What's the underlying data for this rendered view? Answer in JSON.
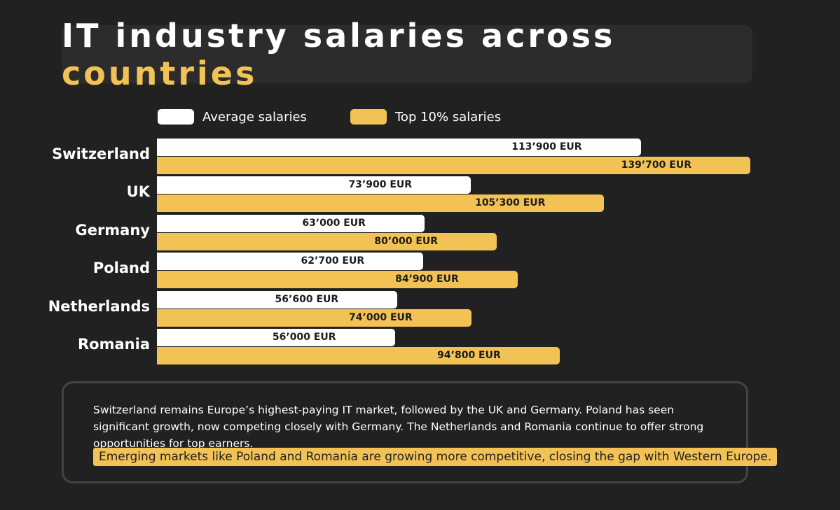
{
  "title": {
    "main": "IT industry salaries across",
    "highlight": "countries"
  },
  "colors": {
    "average": "#ffffff",
    "top10": "#f3c255",
    "background": "#212121"
  },
  "chart_data": {
    "type": "bar",
    "orientation": "horizontal",
    "categories": [
      "Switzerland",
      "UK",
      "Germany",
      "Poland",
      "Netherlands",
      "Romania"
    ],
    "series": [
      {
        "name": "Average salaries",
        "values": [
          113900,
          73900,
          63000,
          62700,
          56600,
          56000
        ],
        "labels": [
          "113’900 EUR",
          "73’900 EUR",
          "63’000 EUR",
          "62’700 EUR",
          "56’600 EUR",
          "56’000 EUR"
        ]
      },
      {
        "name": "Top 10% salaries",
        "values": [
          139700,
          105300,
          80000,
          84900,
          74000,
          94800
        ],
        "labels": [
          "139’700 EUR",
          "105’300 EUR",
          "80’000 EUR",
          "84’900 EUR",
          "74’000 EUR",
          "94’800 EUR"
        ]
      }
    ],
    "unit": "EUR",
    "legend": "top",
    "grid": false
  },
  "note": {
    "text": "Switzerland remains Europe’s highest-paying IT market, followed by the UK and Germany. Poland has seen significant growth, now competing closely with Germany. The Netherlands and Romania continue to offer strong opportunities for top earners.",
    "highlight": "Emerging markets like Poland and Romania are growing more competitive, closing the gap with Western Europe."
  }
}
